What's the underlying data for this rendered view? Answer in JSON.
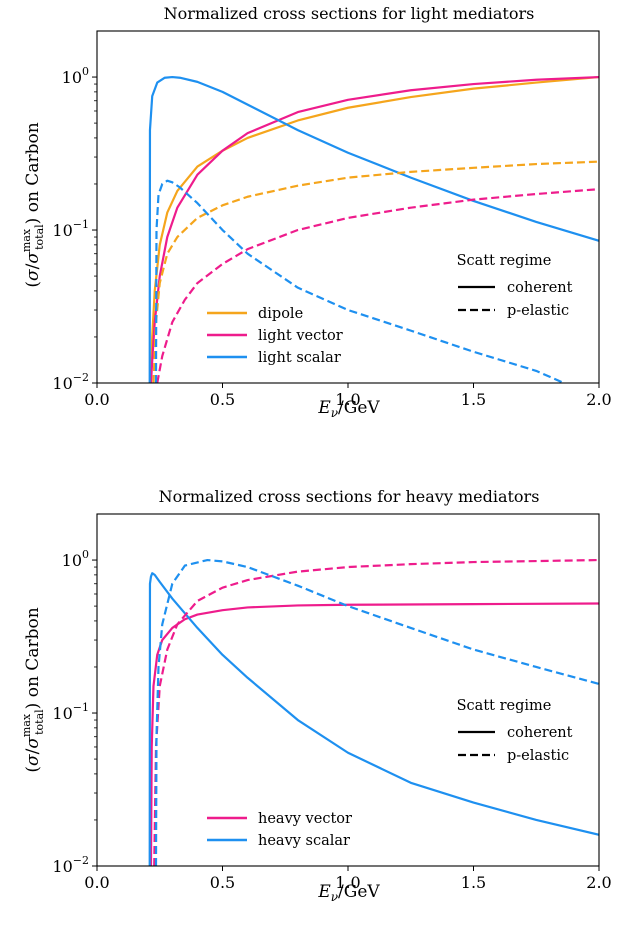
{
  "chart_data": [
    {
      "type": "line",
      "title": "Normalized cross sections for light mediators",
      "xlabel": "E_ν/GeV",
      "ylabel": "(σ/σ_total^max) on Carbon",
      "xlim": [
        0.0,
        2.0
      ],
      "ylim": [
        0.01,
        2.0
      ],
      "yscale": "log",
      "grid": false,
      "x_ticks": [
        "0.0",
        "0.5",
        "1.0",
        "1.5",
        "2.0"
      ],
      "y_ticks": [
        {
          "base": "10",
          "exp": "0",
          "value": 1
        },
        {
          "base": "10",
          "exp": "−1",
          "value": 0.1
        },
        {
          "base": "10",
          "exp": "−2",
          "value": 0.01
        }
      ],
      "legend_placement": "lower-left",
      "legend_style_title": "Scatt regime",
      "legend_style_placement": "center-right",
      "series": [
        {
          "name": "dipole",
          "color": "#f5a51c",
          "style": "solid",
          "regime": "coherent",
          "x": [
            0.215,
            0.22,
            0.23,
            0.25,
            0.28,
            0.32,
            0.4,
            0.5,
            0.6,
            0.8,
            1.0,
            1.25,
            1.5,
            1.75,
            2.0
          ],
          "y": [
            0.01,
            0.02,
            0.04,
            0.08,
            0.13,
            0.18,
            0.26,
            0.33,
            0.4,
            0.52,
            0.63,
            0.74,
            0.84,
            0.92,
            1.0
          ]
        },
        {
          "name": "light vector",
          "color": "#ee1c8c",
          "style": "solid",
          "regime": "coherent",
          "x": [
            0.215,
            0.22,
            0.23,
            0.25,
            0.28,
            0.32,
            0.4,
            0.5,
            0.6,
            0.8,
            1.0,
            1.25,
            1.5,
            1.75,
            2.0
          ],
          "y": [
            0.01,
            0.014,
            0.025,
            0.05,
            0.09,
            0.14,
            0.23,
            0.33,
            0.43,
            0.59,
            0.71,
            0.82,
            0.9,
            0.96,
            1.0
          ]
        },
        {
          "name": "light scalar",
          "color": "#1e90f0",
          "style": "solid",
          "regime": "coherent",
          "x": [
            0.21,
            0.211,
            0.22,
            0.24,
            0.27,
            0.3,
            0.33,
            0.4,
            0.5,
            0.6,
            0.8,
            1.0,
            1.25,
            1.5,
            1.75,
            2.0
          ],
          "y": [
            0.01,
            0.45,
            0.75,
            0.92,
            0.99,
            1.0,
            0.99,
            0.93,
            0.8,
            0.66,
            0.45,
            0.32,
            0.22,
            0.155,
            0.113,
            0.085
          ]
        },
        {
          "name": "dipole",
          "color": "#f5a51c",
          "style": "dashed",
          "regime": "p-elastic",
          "x": [
            0.225,
            0.235,
            0.25,
            0.28,
            0.32,
            0.4,
            0.5,
            0.6,
            0.8,
            1.0,
            1.25,
            1.5,
            1.75,
            2.0
          ],
          "y": [
            0.01,
            0.025,
            0.045,
            0.07,
            0.09,
            0.12,
            0.145,
            0.165,
            0.195,
            0.22,
            0.24,
            0.255,
            0.27,
            0.28
          ]
        },
        {
          "name": "light vector",
          "color": "#ee1c8c",
          "style": "dashed",
          "regime": "p-elastic",
          "x": [
            0.24,
            0.26,
            0.3,
            0.35,
            0.4,
            0.5,
            0.6,
            0.8,
            1.0,
            1.25,
            1.5,
            1.75,
            2.0
          ],
          "y": [
            0.01,
            0.015,
            0.025,
            0.035,
            0.045,
            0.06,
            0.075,
            0.1,
            0.12,
            0.14,
            0.158,
            0.172,
            0.185
          ]
        },
        {
          "name": "light scalar",
          "color": "#1e90f0",
          "style": "dashed",
          "regime": "p-elastic",
          "x": [
            0.235,
            0.237,
            0.245,
            0.26,
            0.28,
            0.3,
            0.33,
            0.4,
            0.5,
            0.6,
            0.8,
            1.0,
            1.25,
            1.5,
            1.75,
            1.86
          ],
          "y": [
            0.01,
            0.1,
            0.17,
            0.2,
            0.21,
            0.205,
            0.19,
            0.15,
            0.1,
            0.07,
            0.042,
            0.03,
            0.022,
            0.016,
            0.012,
            0.01
          ]
        }
      ]
    },
    {
      "type": "line",
      "title": "Normalized cross sections for heavy mediators",
      "xlabel": "E_ν/GeV",
      "ylabel": "(σ/σ_total^max) on Carbon",
      "xlim": [
        0.0,
        2.0
      ],
      "ylim": [
        0.01,
        2.0
      ],
      "yscale": "log",
      "grid": false,
      "x_ticks": [
        "0.0",
        "0.5",
        "1.0",
        "1.5",
        "2.0"
      ],
      "y_ticks": [
        {
          "base": "10",
          "exp": "0",
          "value": 1
        },
        {
          "base": "10",
          "exp": "−1",
          "value": 0.1
        },
        {
          "base": "10",
          "exp": "−2",
          "value": 0.01
        }
      ],
      "legend_placement": "lower-left",
      "legend_style_title": "Scatt regime",
      "legend_style_placement": "center-right",
      "series": [
        {
          "name": "heavy vector",
          "color": "#ee1c8c",
          "style": "solid",
          "regime": "coherent",
          "x": [
            0.215,
            0.218,
            0.225,
            0.24,
            0.26,
            0.3,
            0.35,
            0.4,
            0.5,
            0.6,
            0.8,
            1.0,
            1.5,
            2.0
          ],
          "y": [
            0.01,
            0.06,
            0.15,
            0.24,
            0.3,
            0.36,
            0.41,
            0.44,
            0.47,
            0.49,
            0.505,
            0.51,
            0.515,
            0.52
          ]
        },
        {
          "name": "heavy scalar",
          "color": "#1e90f0",
          "style": "solid",
          "regime": "coherent",
          "x": [
            0.21,
            0.211,
            0.215,
            0.22,
            0.23,
            0.25,
            0.3,
            0.4,
            0.5,
            0.6,
            0.8,
            1.0,
            1.25,
            1.5,
            1.75,
            2.0
          ],
          "y": [
            0.01,
            0.7,
            0.78,
            0.82,
            0.8,
            0.72,
            0.56,
            0.36,
            0.24,
            0.17,
            0.09,
            0.055,
            0.035,
            0.026,
            0.02,
            0.016
          ]
        },
        {
          "name": "heavy vector",
          "color": "#ee1c8c",
          "style": "dashed",
          "regime": "p-elastic",
          "x": [
            0.228,
            0.235,
            0.25,
            0.28,
            0.32,
            0.4,
            0.5,
            0.6,
            0.8,
            1.0,
            1.25,
            1.5,
            1.75,
            2.0
          ],
          "y": [
            0.01,
            0.06,
            0.15,
            0.26,
            0.38,
            0.54,
            0.66,
            0.74,
            0.84,
            0.9,
            0.94,
            0.97,
            0.985,
            1.0
          ]
        },
        {
          "name": "heavy scalar",
          "color": "#1e90f0",
          "style": "dashed",
          "regime": "p-elastic",
          "x": [
            0.235,
            0.237,
            0.245,
            0.26,
            0.3,
            0.35,
            0.44,
            0.5,
            0.6,
            0.8,
            1.0,
            1.25,
            1.5,
            1.75,
            2.0
          ],
          "y": [
            0.01,
            0.07,
            0.2,
            0.38,
            0.7,
            0.92,
            1.0,
            0.98,
            0.9,
            0.68,
            0.5,
            0.36,
            0.26,
            0.2,
            0.155
          ]
        }
      ]
    }
  ]
}
